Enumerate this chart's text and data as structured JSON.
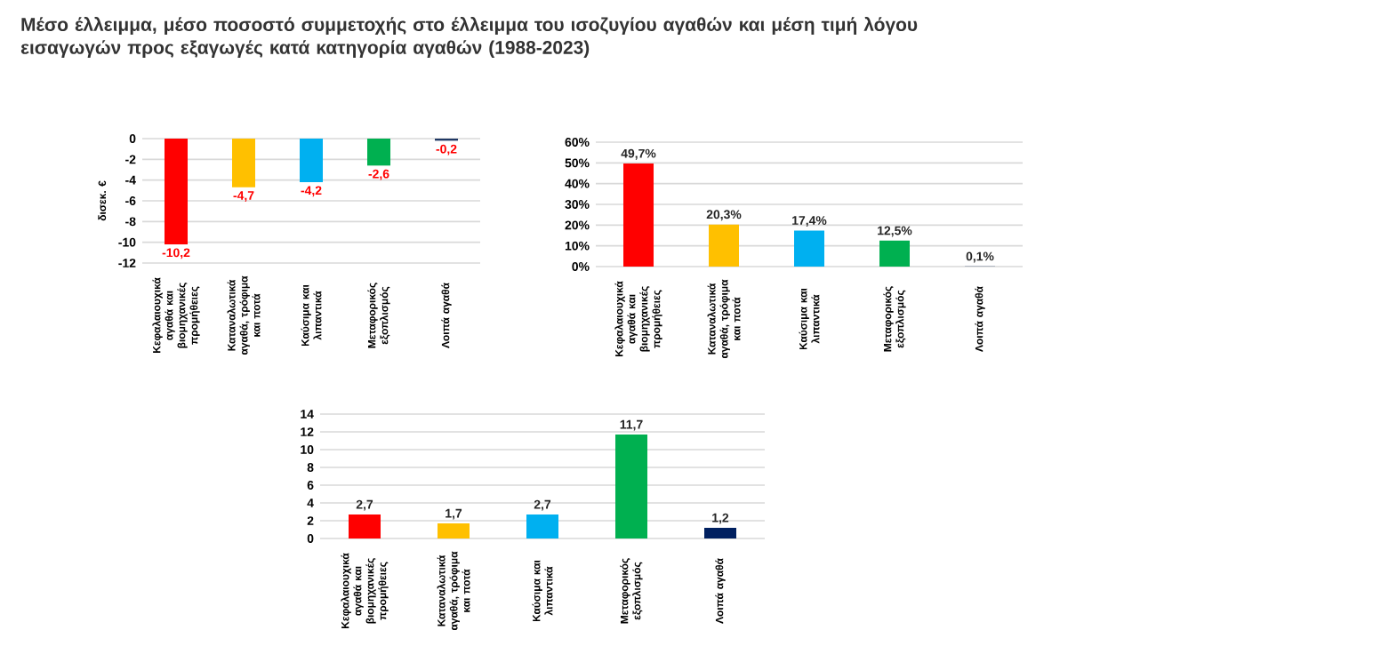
{
  "chart_data": [
    {
      "type": "bar",
      "title": "Μέσο έλλειμμα, μέσο ποσοστό συμμετοχής στο έλλειμμα του ισοζυγίου αγαθών και μέση τιμή λόγου εισαγωγών προς εξαγωγές κατά κατηγορία αγαθών (1988-2023)",
      "ylabel": "δισεκ. €",
      "categories": [
        "Κεφαλαιουχικά αγαθά και βιομηχανικές προμήθειες",
        "Καταναλωτικά αγαθά, τρόφιμα και ποτά",
        "Καύσιμα και λιπαντικά",
        "Μεταφορικός εξοπλισμός",
        "Λοιπά αγαθά"
      ],
      "values": [
        -10.2,
        -4.7,
        -4.2,
        -2.6,
        -0.2
      ],
      "colors": [
        "#ff0000",
        "#ffc000",
        "#00b0f0",
        "#00b050",
        "#203864"
      ],
      "value_labels": [
        "-10,2",
        "-4,7",
        "-4,2",
        "-2,6",
        "-0,2"
      ],
      "ylim": [
        -12,
        0
      ],
      "yticks": [
        -12,
        -10,
        -8,
        -6,
        -4,
        -2,
        0
      ],
      "grid": "y"
    },
    {
      "type": "bar",
      "categories": [
        "Κεφαλαιουχικά αγαθά και βιομηχανικές προμήθειες",
        "Καταναλωτικά αγαθά, τρόφιμα και ποτά",
        "Καύσιμα και λιπαντικά",
        "Μεταφορικός εξοπλισμός",
        "Λοιπά αγαθά"
      ],
      "values": [
        49.7,
        20.3,
        17.4,
        12.5,
        0.1
      ],
      "colors": [
        "#ff0000",
        "#ffc000",
        "#00b0f0",
        "#00b050",
        "#203864"
      ],
      "value_labels": [
        "49,7%",
        "20,3%",
        "17,4%",
        "12,5%",
        "0,1%"
      ],
      "ylim": [
        0,
        60
      ],
      "yticks": [
        {
          "value": 0,
          "label": "0%"
        },
        {
          "value": 10,
          "label": "10%"
        },
        {
          "value": 20,
          "label": "20%"
        },
        {
          "value": 30,
          "label": "30%"
        },
        {
          "value": 40,
          "label": "40%"
        },
        {
          "value": 50,
          "label": "50%"
        },
        {
          "value": 60,
          "label": "60%"
        }
      ],
      "grid": "y"
    },
    {
      "type": "bar",
      "categories": [
        "Κεφαλαιουχικά αγαθά και βιομηχανικές προμήθειες",
        "Καταναλωτικά αγαθά, τρόφιμα και ποτά",
        "Καύσιμα και λιπαντικά",
        "Μεταφορικός εξοπλισμός",
        "Λοιπά αγαθά"
      ],
      "values": [
        2.7,
        1.7,
        2.7,
        11.7,
        1.2
      ],
      "colors": [
        "#ff0000",
        "#ffc000",
        "#00b0f0",
        "#00b050",
        "#002060"
      ],
      "value_labels": [
        "2,7",
        "1,7",
        "2,7",
        "11,7",
        "1,2"
      ],
      "ylim": [
        0,
        14
      ],
      "yticks": [
        0,
        2,
        4,
        6,
        8,
        10,
        12,
        14
      ],
      "grid": "y"
    }
  ]
}
